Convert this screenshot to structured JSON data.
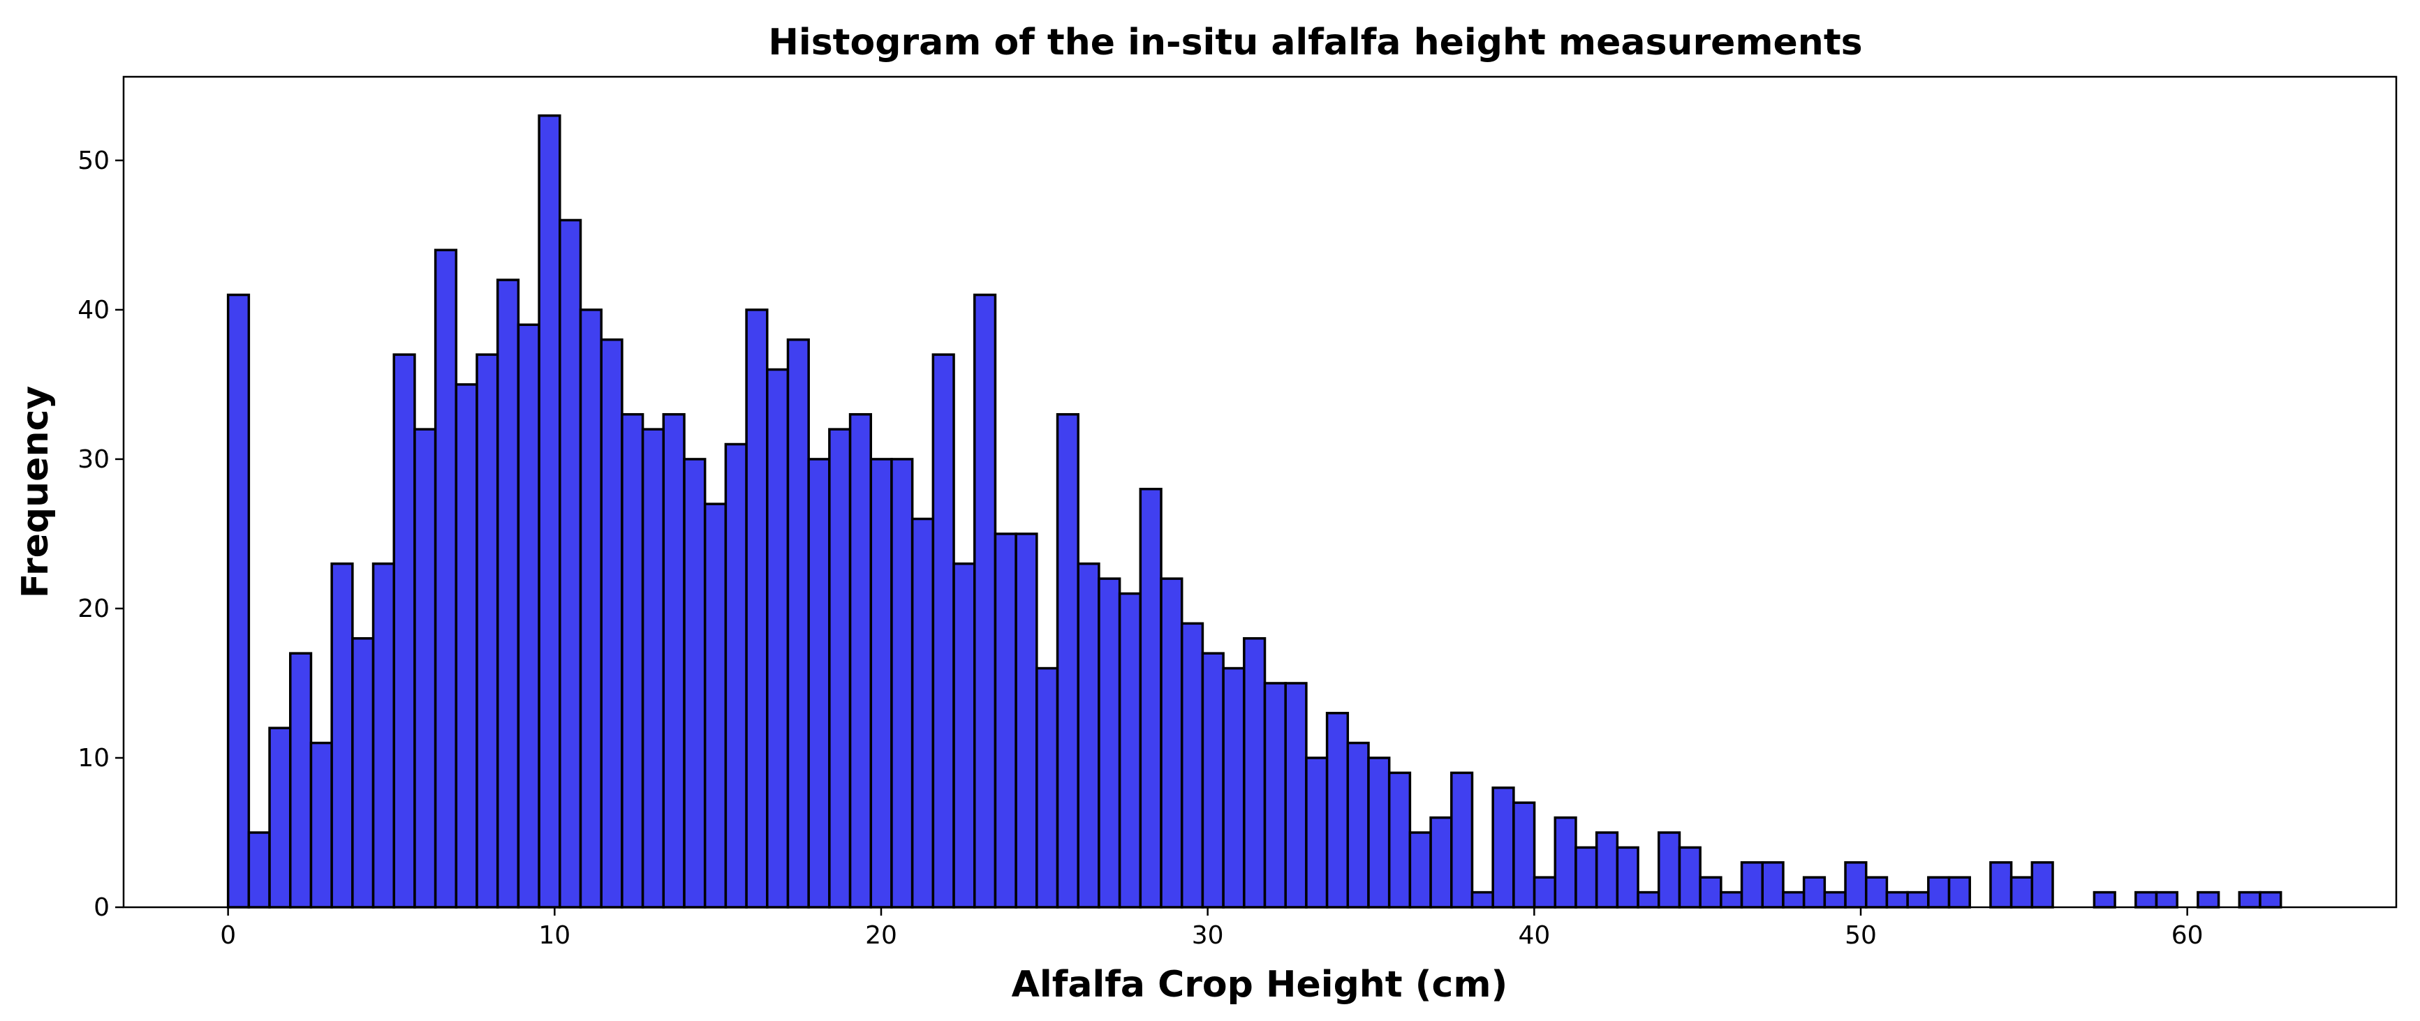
{
  "chart_data": {
    "type": "bar",
    "subtype": "histogram",
    "title": "Histogram of the in-situ alfalfa height measurements",
    "xlabel": "Alfalfa Crop Height (cm)",
    "ylabel": "Frequency",
    "xlim": [
      -3.2,
      66.4
    ],
    "ylim": [
      0,
      55.6
    ],
    "xticks": [
      0,
      10,
      20,
      30,
      40,
      50,
      60
    ],
    "yticks": [
      0,
      10,
      20,
      30,
      40,
      50
    ],
    "bin_start": 0,
    "bin_width": 0.635,
    "bar_color": "#4040f0",
    "edge_color": "#000000",
    "grid": false,
    "legend": "none",
    "values": [
      41,
      5,
      12,
      17,
      11,
      23,
      18,
      23,
      37,
      32,
      44,
      35,
      37,
      42,
      39,
      53,
      46,
      40,
      38,
      33,
      32,
      33,
      30,
      27,
      31,
      40,
      36,
      38,
      30,
      32,
      33,
      30,
      30,
      26,
      37,
      23,
      41,
      25,
      25,
      16,
      33,
      23,
      22,
      21,
      28,
      22,
      19,
      17,
      16,
      18,
      15,
      15,
      10,
      13,
      11,
      10,
      9,
      5,
      6,
      9,
      1,
      8,
      7,
      2,
      6,
      4,
      5,
      4,
      1,
      5,
      4,
      2,
      1,
      3,
      3,
      1,
      2,
      1,
      3,
      2,
      1,
      1,
      2,
      2,
      0,
      3,
      2,
      3,
      0,
      0,
      1,
      0,
      1,
      1,
      0,
      1,
      0,
      1,
      1
    ]
  }
}
